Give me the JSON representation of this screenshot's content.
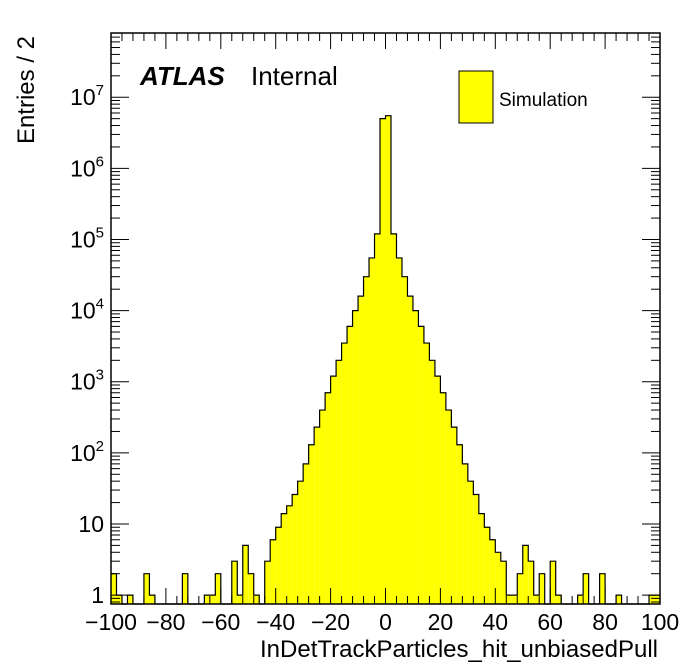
{
  "chart_data": {
    "type": "bar",
    "title": "",
    "xlabel": "InDetTrackParticles_hit_unbiasedPull",
    "ylabel": "Entries / 2",
    "log_y": true,
    "xlim": [
      -100,
      100
    ],
    "ylim": [
      0.75,
      80000000
    ],
    "bin_width": 2,
    "fill_color": "#ffff00",
    "line_color": "#000000",
    "legend_position": "top-right",
    "series": [
      {
        "name": "Simulation",
        "x": [
          -99,
          -97,
          -95,
          -93,
          -91,
          -89,
          -87,
          -85,
          -83,
          -81,
          -79,
          -77,
          -75,
          -73,
          -71,
          -69,
          -67,
          -65,
          -63,
          -61,
          -59,
          -57,
          -55,
          -53,
          -51,
          -49,
          -47,
          -45,
          -43,
          -41,
          -39,
          -37,
          -35,
          -33,
          -31,
          -29,
          -27,
          -25,
          -23,
          -21,
          -19,
          -17,
          -15,
          -13,
          -11,
          -9,
          -7,
          -5,
          -3,
          -1,
          1,
          3,
          5,
          7,
          9,
          11,
          13,
          15,
          17,
          19,
          21,
          23,
          25,
          27,
          29,
          31,
          33,
          35,
          37,
          39,
          41,
          43,
          45,
          47,
          49,
          51,
          53,
          55,
          57,
          59,
          61,
          63,
          65,
          67,
          69,
          71,
          73,
          75,
          77,
          79,
          81,
          83,
          85,
          87,
          89,
          91,
          93,
          95,
          97,
          99
        ],
        "values": [
          2,
          1,
          0,
          1,
          0,
          0,
          2,
          1,
          0,
          0,
          0,
          0,
          0,
          2,
          0,
          0,
          0,
          1,
          1,
          2,
          0,
          0,
          3,
          1,
          5,
          2,
          1,
          0,
          3,
          6,
          9,
          14,
          18,
          26,
          40,
          70,
          130,
          230,
          400,
          700,
          1200,
          2000,
          3500,
          6000,
          10000,
          16000,
          30000,
          55000,
          120000,
          5000000,
          5500000,
          120000,
          55000,
          30000,
          16000,
          10000,
          6000,
          3500,
          2000,
          1200,
          700,
          400,
          230,
          130,
          70,
          40,
          26,
          14,
          9,
          6,
          4,
          3,
          1,
          1,
          2,
          5,
          3,
          1,
          2,
          0,
          3,
          1,
          0,
          0,
          0,
          1,
          2,
          0,
          0,
          2,
          0,
          0,
          1,
          0,
          0,
          0,
          0,
          0,
          1,
          1
        ]
      }
    ],
    "x_ticks": [
      -100,
      -80,
      -60,
      -40,
      -20,
      0,
      20,
      40,
      60,
      80,
      100
    ],
    "x_tick_labels": [
      "−100",
      "−80",
      "−60",
      "−40",
      "−20",
      "0",
      "20",
      "40",
      "60",
      "80",
      "100"
    ],
    "y_ticks": [
      1,
      10,
      100,
      1000,
      10000,
      100000,
      1000000,
      10000000
    ],
    "y_tick_labels": [
      {
        "base": "1",
        "exp": ""
      },
      {
        "base": "10",
        "exp": ""
      },
      {
        "base": "10",
        "exp": "2"
      },
      {
        "base": "10",
        "exp": "3"
      },
      {
        "base": "10",
        "exp": "4"
      },
      {
        "base": "10",
        "exp": "5"
      },
      {
        "base": "10",
        "exp": "6"
      },
      {
        "base": "10",
        "exp": "7"
      }
    ]
  },
  "labels": {
    "atlas": "ATLAS",
    "internal": "Internal",
    "legend_entry": "Simulation"
  }
}
